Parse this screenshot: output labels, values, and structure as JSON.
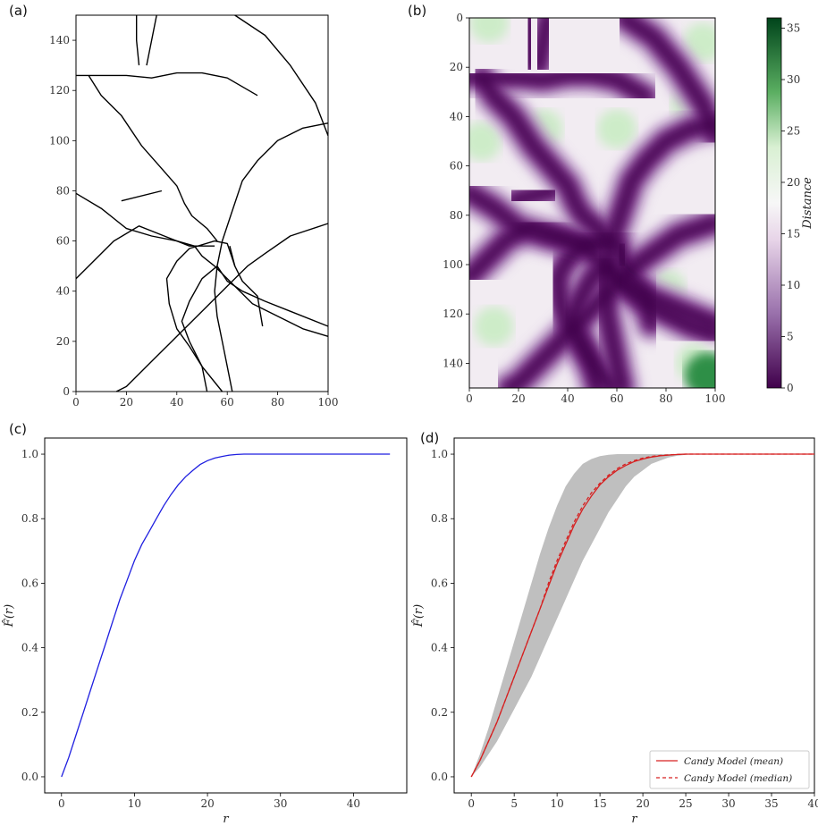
{
  "panel_labels": [
    "(a)",
    "(b)",
    "(c)",
    "(d)"
  ],
  "colors": {
    "crack": "#000000",
    "line_c": "#1f1fe0",
    "line_d": "#d62020",
    "band": "#bfbfbf",
    "cmap_low": "#40004b",
    "cmap_mid": "#f7f7f7",
    "cmap_high": "#00441b"
  },
  "chart_data": [
    {
      "panel": "(a)",
      "type": "line",
      "description_type": "crack network segments",
      "xlim": [
        0,
        100
      ],
      "ylim": [
        0,
        150
      ],
      "xticks": [
        0,
        20,
        40,
        60,
        80,
        100
      ],
      "yticks": [
        0,
        20,
        40,
        60,
        80,
        100,
        120,
        140
      ],
      "paths": [
        [
          [
            0,
            126
          ],
          [
            10,
            126
          ],
          [
            20,
            126
          ],
          [
            30,
            125
          ],
          [
            40,
            127
          ],
          [
            50,
            127
          ],
          [
            60,
            125
          ],
          [
            72,
            118
          ]
        ],
        [
          [
            16,
            0
          ],
          [
            20,
            2
          ],
          [
            30,
            12
          ],
          [
            40,
            22
          ],
          [
            50,
            32
          ],
          [
            60,
            42
          ],
          [
            68,
            50
          ],
          [
            75,
            55
          ],
          [
            85,
            62
          ],
          [
            100,
            67
          ]
        ],
        [
          [
            52,
            0
          ],
          [
            50,
            10
          ],
          [
            45,
            18
          ],
          [
            40,
            25
          ],
          [
            37,
            35
          ],
          [
            36,
            45
          ],
          [
            40,
            52
          ],
          [
            45,
            57
          ],
          [
            55,
            60
          ],
          [
            60,
            59
          ],
          [
            63,
            50
          ],
          [
            66,
            44
          ],
          [
            72,
            38
          ],
          [
            74,
            26
          ]
        ],
        [
          [
            0,
            45
          ],
          [
            5,
            50
          ],
          [
            15,
            60
          ],
          [
            25,
            66
          ],
          [
            35,
            62
          ],
          [
            45,
            58
          ],
          [
            55,
            58
          ]
        ],
        [
          [
            0,
            79
          ],
          [
            10,
            73
          ],
          [
            20,
            65
          ],
          [
            30,
            62
          ],
          [
            40,
            60
          ],
          [
            47,
            58
          ],
          [
            50,
            54
          ],
          [
            55,
            50
          ],
          [
            60,
            45
          ],
          [
            70,
            35
          ],
          [
            80,
            30
          ],
          [
            90,
            25
          ],
          [
            100,
            22
          ]
        ],
        [
          [
            58,
            0
          ],
          [
            50,
            10
          ],
          [
            45,
            20
          ],
          [
            42,
            28
          ],
          [
            45,
            36
          ],
          [
            50,
            45
          ],
          [
            56,
            50
          ],
          [
            60,
            44
          ],
          [
            66,
            40
          ],
          [
            75,
            36
          ],
          [
            85,
            32
          ],
          [
            100,
            26
          ]
        ],
        [
          [
            62,
            0
          ],
          [
            60,
            10
          ],
          [
            58,
            20
          ],
          [
            56,
            30
          ],
          [
            55,
            40
          ],
          [
            56,
            50
          ],
          [
            58,
            60
          ],
          [
            62,
            72
          ],
          [
            66,
            84
          ],
          [
            72,
            92
          ],
          [
            80,
            100
          ],
          [
            90,
            105
          ],
          [
            100,
            107
          ]
        ],
        [
          [
            63,
            150
          ],
          [
            75,
            142
          ],
          [
            85,
            130
          ],
          [
            95,
            115
          ],
          [
            100,
            102
          ]
        ],
        [
          [
            32,
            150
          ],
          [
            30,
            140
          ],
          [
            28,
            130
          ]
        ],
        [
          [
            18,
            76
          ],
          [
            34,
            80
          ]
        ],
        [
          [
            61,
            58
          ],
          [
            63,
            50
          ]
        ],
        [
          [
            5,
            126
          ],
          [
            10,
            118
          ],
          [
            18,
            110
          ],
          [
            26,
            98
          ],
          [
            33,
            90
          ],
          [
            40,
            82
          ],
          [
            43,
            75
          ],
          [
            46,
            70
          ],
          [
            52,
            65
          ],
          [
            56,
            60
          ]
        ],
        [
          [
            24,
            150
          ],
          [
            24,
            140
          ],
          [
            25,
            130
          ]
        ]
      ]
    },
    {
      "panel": "(b)",
      "type": "heatmap",
      "description_type": "distance map",
      "xlim": [
        0,
        100
      ],
      "ylim": [
        150,
        0
      ],
      "xticks": [
        0,
        20,
        40,
        60,
        80,
        100
      ],
      "yticks": [
        0,
        20,
        40,
        60,
        80,
        100,
        120,
        140
      ],
      "colorbar_label": "Distance",
      "colorbar_range": [
        0,
        36
      ],
      "colorbar_ticks": [
        0,
        5,
        10,
        15,
        20,
        25,
        30,
        35
      ]
    },
    {
      "panel": "(c)",
      "type": "line",
      "xlabel": "r",
      "ylabel": "F̂(r)",
      "xlim": [
        -2.3,
        47.3
      ],
      "ylim": [
        -0.05,
        1.05
      ],
      "xticks": [
        0,
        10,
        20,
        30,
        40
      ],
      "yticks": [
        0.0,
        0.2,
        0.4,
        0.6,
        0.8,
        1.0
      ],
      "series": [
        {
          "x": [
            0,
            1,
            2,
            3,
            4,
            5,
            6,
            7,
            8,
            9,
            10,
            11,
            12,
            13,
            14,
            15,
            16,
            17,
            18,
            19,
            20,
            21,
            22,
            23,
            24,
            25,
            26,
            30,
            35,
            40,
            45
          ],
          "y": [
            0,
            0.06,
            0.13,
            0.2,
            0.27,
            0.34,
            0.41,
            0.48,
            0.55,
            0.61,
            0.67,
            0.72,
            0.76,
            0.8,
            0.84,
            0.875,
            0.905,
            0.93,
            0.95,
            0.968,
            0.98,
            0.988,
            0.993,
            0.997,
            0.999,
            1.0,
            1.0,
            1.0,
            1.0,
            1.0,
            1.0
          ]
        }
      ]
    },
    {
      "panel": "(d)",
      "type": "line",
      "xlabel": "r",
      "ylabel": "F̂(r)",
      "xlim": [
        -2,
        40
      ],
      "ylim": [
        -0.05,
        1.05
      ],
      "xticks": [
        0,
        5,
        10,
        15,
        20,
        25,
        30,
        35,
        40
      ],
      "yticks": [
        0.0,
        0.2,
        0.4,
        0.6,
        0.8,
        1.0
      ],
      "band": {
        "x": [
          0,
          1,
          2,
          3,
          4,
          5,
          6,
          7,
          8,
          9,
          10,
          11,
          12,
          13,
          14,
          15,
          16,
          17,
          18,
          19,
          20,
          21,
          22,
          23,
          24,
          25,
          26,
          27,
          28,
          29,
          30,
          35,
          40
        ],
        "low": [
          0,
          0.03,
          0.07,
          0.11,
          0.16,
          0.21,
          0.26,
          0.31,
          0.37,
          0.43,
          0.49,
          0.55,
          0.61,
          0.67,
          0.72,
          0.77,
          0.82,
          0.86,
          0.9,
          0.93,
          0.95,
          0.97,
          0.98,
          0.99,
          0.995,
          0.998,
          0.999,
          1.0,
          1.0,
          1.0,
          1.0,
          1.0,
          1.0
        ],
        "high": [
          0,
          0.07,
          0.15,
          0.24,
          0.33,
          0.42,
          0.51,
          0.6,
          0.69,
          0.77,
          0.84,
          0.9,
          0.94,
          0.97,
          0.985,
          0.994,
          0.998,
          1.0,
          1.0,
          1.0,
          1.0,
          1.0,
          1.0,
          1.0,
          1.0,
          1.0,
          1.0,
          1.0,
          1.0,
          1.0,
          1.0,
          1.0,
          1.0
        ]
      },
      "series": [
        {
          "name": "Candy Model (mean)",
          "style": "solid",
          "x": [
            0,
            1,
            2,
            3,
            4,
            5,
            6,
            7,
            8,
            9,
            10,
            11,
            12,
            13,
            14,
            15,
            16,
            17,
            18,
            19,
            20,
            21,
            22,
            23,
            24,
            25,
            26,
            27,
            28,
            30,
            35,
            40
          ],
          "y": [
            0,
            0.05,
            0.11,
            0.17,
            0.24,
            0.31,
            0.38,
            0.45,
            0.52,
            0.59,
            0.66,
            0.72,
            0.78,
            0.83,
            0.87,
            0.905,
            0.93,
            0.95,
            0.965,
            0.977,
            0.985,
            0.991,
            0.995,
            0.997,
            0.999,
            1.0,
            1.0,
            1.0,
            1.0,
            1.0,
            1.0,
            1.0
          ]
        },
        {
          "name": "Candy Model (median)",
          "style": "dashed",
          "x": [
            0,
            1,
            2,
            3,
            4,
            5,
            6,
            7,
            8,
            9,
            10,
            11,
            12,
            13,
            14,
            15,
            16,
            17,
            18,
            19,
            20,
            21,
            22,
            23,
            24,
            25,
            26,
            27,
            28,
            30,
            35,
            40
          ],
          "y": [
            0,
            0.05,
            0.11,
            0.17,
            0.24,
            0.31,
            0.38,
            0.45,
            0.52,
            0.6,
            0.67,
            0.73,
            0.79,
            0.84,
            0.88,
            0.91,
            0.935,
            0.955,
            0.97,
            0.98,
            0.988,
            0.993,
            0.996,
            0.998,
            0.999,
            1.0,
            1.0,
            1.0,
            1.0,
            1.0,
            1.0,
            1.0
          ]
        }
      ],
      "legend": {
        "placement": "lower-right",
        "entries": [
          "Candy Model (mean)",
          "Candy Model (median)"
        ]
      }
    }
  ]
}
